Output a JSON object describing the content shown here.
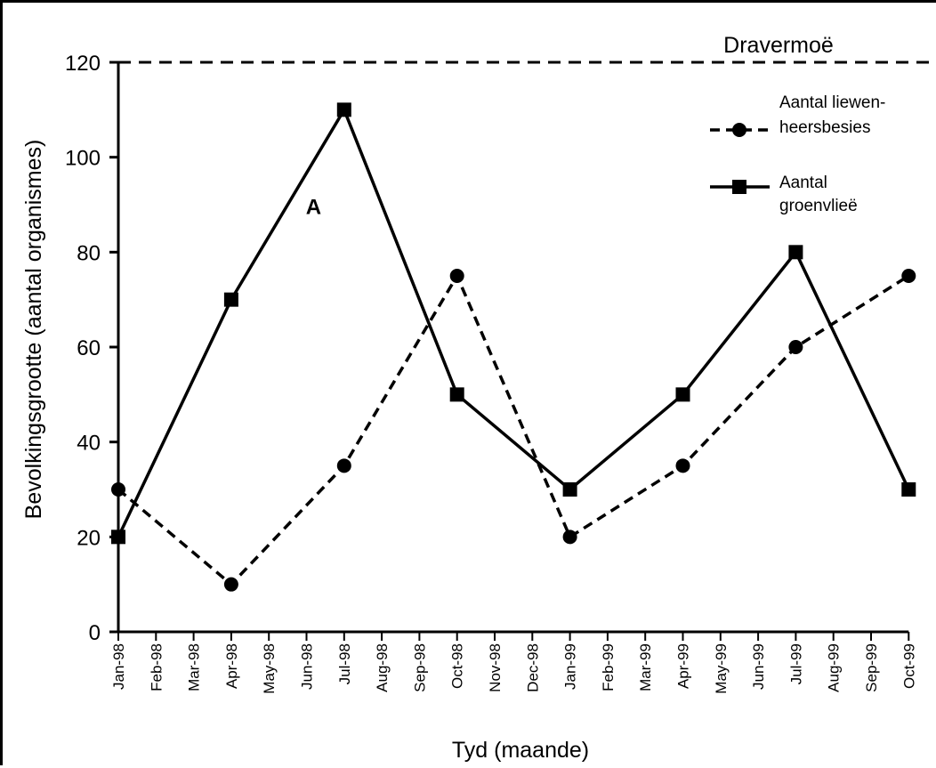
{
  "chart_data": {
    "type": "line",
    "xlabel": "Tyd (maande)",
    "ylabel": "Bevolkingsgrootte (aantal organismes)",
    "ylim": [
      0,
      120
    ],
    "yticks": [
      0,
      20,
      40,
      60,
      80,
      100,
      120
    ],
    "categories": [
      "Jan-98",
      "Feb-98",
      "Mar-98",
      "Apr-98",
      "May-98",
      "Jun-98",
      "Jul-98",
      "Aug-98",
      "Sep-98",
      "Oct-98",
      "Nov-98",
      "Dec-98",
      "Jan-99",
      "Feb-99",
      "Mar-99",
      "Apr-99",
      "May-99",
      "Jun-99",
      "Jul-99",
      "Aug-99",
      "Sep-99",
      "Oct-99"
    ],
    "series": [
      {
        "name": "Aantal liewen-heersbesies",
        "name_lines": [
          "Aantal liewen-",
          "heersbesies"
        ],
        "style": "dashed",
        "marker": "circle",
        "points": [
          {
            "x": "Jan-98",
            "y": 30
          },
          {
            "x": "Apr-98",
            "y": 10
          },
          {
            "x": "Jul-98",
            "y": 35
          },
          {
            "x": "Oct-98",
            "y": 75
          },
          {
            "x": "Jan-99",
            "y": 20
          },
          {
            "x": "Apr-99",
            "y": 35
          },
          {
            "x": "Jul-99",
            "y": 60
          },
          {
            "x": "Oct-99",
            "y": 75
          }
        ]
      },
      {
        "name": "Aantal groenvlieë",
        "name_lines": [
          "Aantal",
          "groenvlieë"
        ],
        "style": "solid",
        "marker": "square",
        "points": [
          {
            "x": "Jan-98",
            "y": 20
          },
          {
            "x": "Apr-98",
            "y": 70
          },
          {
            "x": "Jul-98",
            "y": 110
          },
          {
            "x": "Oct-98",
            "y": 50
          },
          {
            "x": "Jan-99",
            "y": 30
          },
          {
            "x": "Apr-99",
            "y": 50
          },
          {
            "x": "Jul-99",
            "y": 80
          },
          {
            "x": "Oct-99",
            "y": 30
          }
        ]
      }
    ],
    "reference_line": {
      "y": 120,
      "label": "Dravermoë",
      "style": "dashed"
    },
    "annotations": [
      {
        "text": "A",
        "x": "Jul-98",
        "y": 88
      }
    ],
    "legend": "top-right",
    "grid": false
  }
}
